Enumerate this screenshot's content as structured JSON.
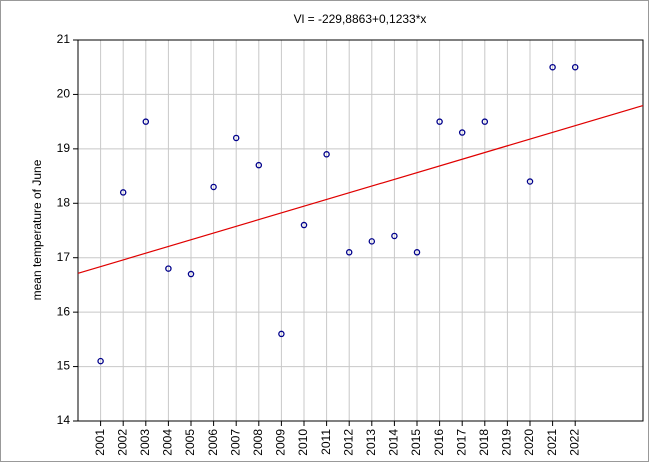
{
  "chart_data": {
    "type": "scatter",
    "title": "Vl = -229,8863+0,1233*x",
    "y_label": "mean temperature of June",
    "x": [
      2001,
      2002,
      2003,
      2004,
      2005,
      2006,
      2007,
      2008,
      2009,
      2010,
      2011,
      2012,
      2013,
      2014,
      2015,
      2016,
      2017,
      2018,
      2020,
      2021,
      2022
    ],
    "series": [
      {
        "color": "#00008b",
        "values": [
          15.1,
          18.2,
          19.5,
          16.8,
          16.7,
          18.3,
          19.2,
          18.7,
          15.6,
          17.6,
          18.9,
          17.1,
          17.3,
          17.4,
          17.1,
          19.5,
          19.3,
          19.5,
          18.4,
          20.5,
          20.5
        ]
      }
    ],
    "regression": {
      "intercept": -229.8863,
      "slope": 0.1233,
      "color": "#e00000"
    },
    "xlim": [
      2000,
      2025
    ],
    "xticks": [
      2001,
      2002,
      2003,
      2004,
      2005,
      2006,
      2007,
      2008,
      2009,
      2010,
      2011,
      2012,
      2013,
      2014,
      2015,
      2016,
      2017,
      2018,
      2019,
      2020,
      2021,
      2022
    ],
    "ylim": [
      14,
      21
    ],
    "yticks": [
      14,
      15,
      16,
      17,
      18,
      19,
      20,
      21
    ],
    "grid": true
  }
}
